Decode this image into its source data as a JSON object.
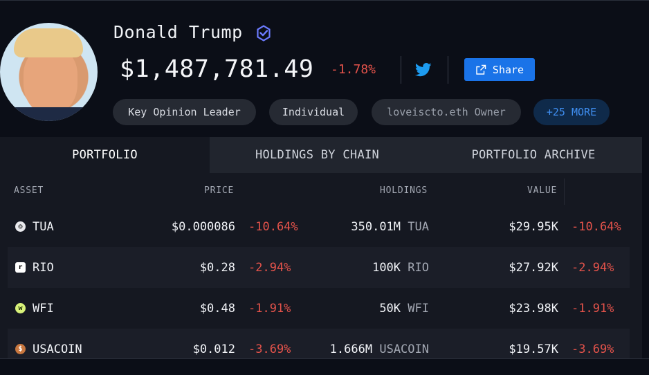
{
  "profile": {
    "name": "Donald Trump",
    "balance": "$1,487,781.49",
    "change": "-1.78%",
    "share_label": "Share",
    "tags": [
      "Key Opinion Leader",
      "Individual",
      "loveiscto.eth Owner",
      "+25 MORE"
    ]
  },
  "icons": {
    "verified": "verified-badge-icon",
    "twitter": "twitter-icon",
    "share": "external-share-icon"
  },
  "colors": {
    "negative": "#e5534b",
    "accent": "#1a73e8",
    "verified": "#6c7bff"
  },
  "tabs": [
    "PORTFOLIO",
    "HOLDINGS BY CHAIN",
    "PORTFOLIO ARCHIVE"
  ],
  "active_tab": "PORTFOLIO",
  "table": {
    "headers": {
      "asset": "ASSET",
      "price": "PRICE",
      "holdings": "HOLDINGS",
      "value": "VALUE"
    },
    "rows": [
      {
        "symbol": "TUA",
        "price": "$0.000086",
        "price_change": "-10.64%",
        "amount": "350.01M",
        "unit": "TUA",
        "value": "$29.95K",
        "value_change": "-10.64%"
      },
      {
        "symbol": "RIO",
        "price": "$0.28",
        "price_change": "-2.94%",
        "amount": "100K",
        "unit": "RIO",
        "value": "$27.92K",
        "value_change": "-2.94%"
      },
      {
        "symbol": "WFI",
        "price": "$0.48",
        "price_change": "-1.91%",
        "amount": "50K",
        "unit": "WFI",
        "value": "$23.98K",
        "value_change": "-1.91%"
      },
      {
        "symbol": "USACOIN",
        "price": "$0.012",
        "price_change": "-3.69%",
        "amount": "1.666M",
        "unit": "USACOIN",
        "value": "$19.57K",
        "value_change": "-3.69%"
      }
    ]
  }
}
